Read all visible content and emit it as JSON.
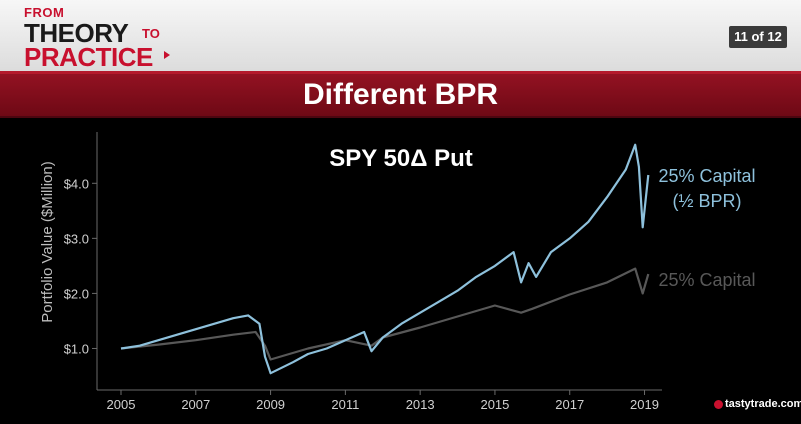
{
  "header": {
    "logo_from": "FROM",
    "logo_theory": "THEORY",
    "logo_to": "TO",
    "logo_practice": "PRACTICE",
    "slide_counter": "11 of 12"
  },
  "banner": {
    "title": "Different BPR"
  },
  "brand": {
    "name": "tastytrade.com"
  },
  "colors": {
    "series_1": "#8ec1dc",
    "series_2": "#585858",
    "banner": "#8b0f1f"
  },
  "chart_data": {
    "type": "line",
    "title": "SPY 50Δ Put",
    "ylabel": "Portfolio Value ($Million)",
    "xlim": [
      2005,
      2019.2
    ],
    "ylim": [
      0.5,
      4.75
    ],
    "x_ticks": [
      "2005",
      "2007",
      "2009",
      "2011",
      "2013",
      "2015",
      "2017",
      "2019"
    ],
    "y_ticks": [
      {
        "value": 1.0,
        "label": "$1.0"
      },
      {
        "value": 2.0,
        "label": "$2.0"
      },
      {
        "value": 3.0,
        "label": "$3.0"
      },
      {
        "value": 4.0,
        "label": "$4.0"
      }
    ],
    "grid": false,
    "series": [
      {
        "name": "25% Capital (½ BPR)",
        "label_lines": [
          "25% Capital",
          "(½ BPR)"
        ],
        "color": "#8ec1dc",
        "points": [
          [
            2005.0,
            1.0
          ],
          [
            2005.5,
            1.05
          ],
          [
            2006.0,
            1.15
          ],
          [
            2006.5,
            1.25
          ],
          [
            2007.0,
            1.35
          ],
          [
            2007.5,
            1.45
          ],
          [
            2008.0,
            1.55
          ],
          [
            2008.4,
            1.6
          ],
          [
            2008.7,
            1.45
          ],
          [
            2008.85,
            0.85
          ],
          [
            2009.0,
            0.55
          ],
          [
            2009.3,
            0.65
          ],
          [
            2009.6,
            0.75
          ],
          [
            2010.0,
            0.9
          ],
          [
            2010.5,
            1.0
          ],
          [
            2011.0,
            1.15
          ],
          [
            2011.5,
            1.3
          ],
          [
            2011.7,
            0.95
          ],
          [
            2012.0,
            1.2
          ],
          [
            2012.5,
            1.45
          ],
          [
            2013.0,
            1.65
          ],
          [
            2013.5,
            1.85
          ],
          [
            2014.0,
            2.05
          ],
          [
            2014.5,
            2.3
          ],
          [
            2015.0,
            2.5
          ],
          [
            2015.5,
            2.75
          ],
          [
            2015.7,
            2.2
          ],
          [
            2015.9,
            2.55
          ],
          [
            2016.1,
            2.3
          ],
          [
            2016.5,
            2.75
          ],
          [
            2017.0,
            3.0
          ],
          [
            2017.5,
            3.3
          ],
          [
            2018.0,
            3.75
          ],
          [
            2018.5,
            4.25
          ],
          [
            2018.75,
            4.7
          ],
          [
            2018.85,
            4.3
          ],
          [
            2018.95,
            3.2
          ],
          [
            2019.1,
            4.15
          ]
        ]
      },
      {
        "name": "25% Capital",
        "label_lines": [
          "25% Capital"
        ],
        "color": "#585858",
        "points": [
          [
            2005.0,
            1.0
          ],
          [
            2006.0,
            1.07
          ],
          [
            2007.0,
            1.15
          ],
          [
            2008.0,
            1.25
          ],
          [
            2008.6,
            1.3
          ],
          [
            2008.85,
            1.05
          ],
          [
            2009.0,
            0.8
          ],
          [
            2009.5,
            0.9
          ],
          [
            2010.0,
            1.0
          ],
          [
            2011.0,
            1.15
          ],
          [
            2011.7,
            1.05
          ],
          [
            2012.0,
            1.2
          ],
          [
            2013.0,
            1.38
          ],
          [
            2014.0,
            1.58
          ],
          [
            2015.0,
            1.78
          ],
          [
            2015.7,
            1.65
          ],
          [
            2016.0,
            1.72
          ],
          [
            2017.0,
            1.98
          ],
          [
            2018.0,
            2.2
          ],
          [
            2018.75,
            2.45
          ],
          [
            2018.95,
            2.0
          ],
          [
            2019.1,
            2.35
          ]
        ]
      }
    ]
  }
}
